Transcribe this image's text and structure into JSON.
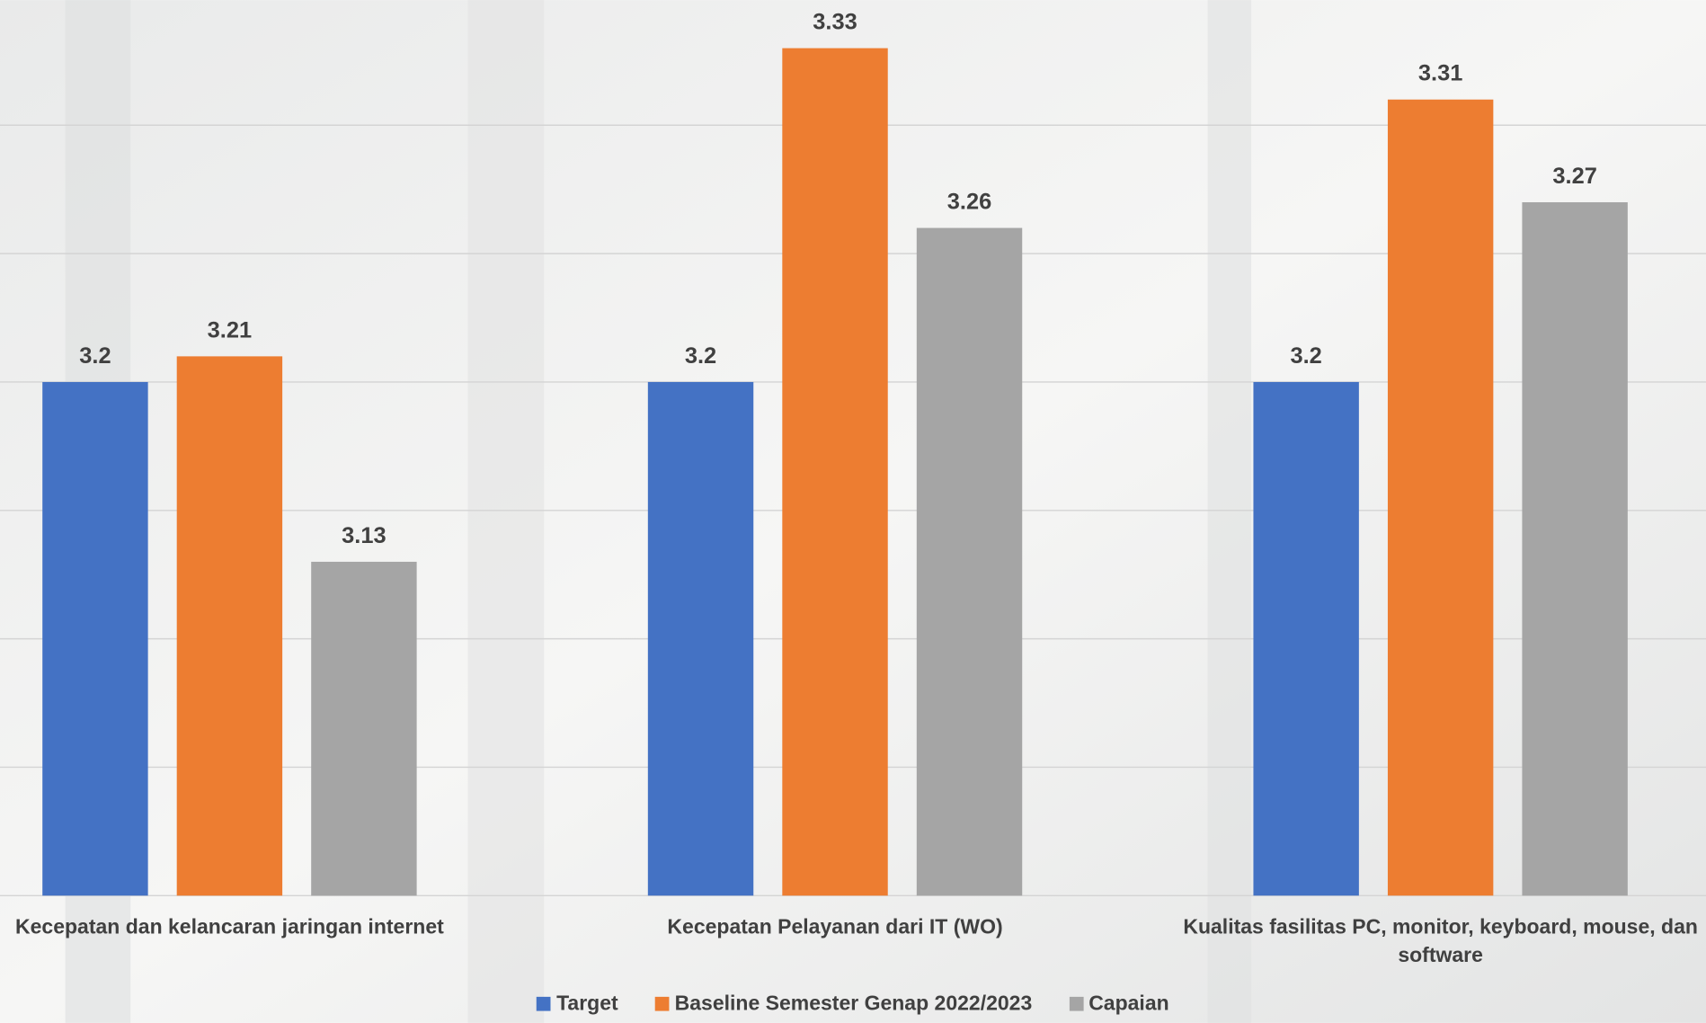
{
  "chart_data": {
    "type": "bar",
    "categories": [
      "Kecepatan dan kelancaran jaringan internet",
      "Kecepatan Pelayanan dari IT (WO)",
      "Kualitas fasilitas PC, monitor, keyboard, mouse, dan software"
    ],
    "series": [
      {
        "name": "Target",
        "color": "#4472c4",
        "values": [
          3.2,
          3.2,
          3.2
        ]
      },
      {
        "name": "Baseline Semester Genap 2022/2023",
        "color": "#ed7d31",
        "values": [
          3.21,
          3.33,
          3.31
        ]
      },
      {
        "name": "Capaian",
        "color": "#a5a5a5",
        "values": [
          3.13,
          3.26,
          3.27
        ]
      }
    ],
    "ylim": [
      3.0,
      3.35
    ],
    "yticks": [
      3.0,
      3.05,
      3.1,
      3.15,
      3.2,
      3.25,
      3.3
    ],
    "show_ytick_labels": false,
    "grid": true,
    "legend": "bottom"
  }
}
